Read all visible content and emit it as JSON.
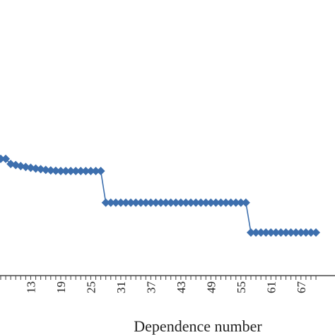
{
  "chart_data": {
    "type": "line",
    "title": "",
    "xlabel": "Dependence number",
    "ylabel": "",
    "grid": false,
    "legend": "none",
    "colors": {
      "series": "#3d6fae",
      "axis": "#444444",
      "text": "#222222"
    },
    "x_tick_labels": [
      "13",
      "19",
      "25",
      "31",
      "37",
      "43",
      "49",
      "55",
      "61",
      "67"
    ],
    "xlim": [
      6,
      70
    ],
    "ylim": [
      0,
      100
    ],
    "series": [
      {
        "x": [
          6,
          7,
          8,
          9,
          10,
          11,
          12,
          13,
          14,
          15,
          16,
          17,
          18,
          19,
          20,
          21,
          22,
          23,
          24,
          25,
          26,
          27,
          28,
          29,
          30,
          31,
          32,
          33,
          34,
          35,
          36,
          37,
          38,
          39,
          40,
          41,
          42,
          43,
          44,
          45,
          46,
          47,
          48,
          49,
          50,
          51,
          52,
          53,
          54,
          55,
          56,
          57,
          58,
          59,
          60,
          61,
          62,
          63,
          64,
          65,
          66,
          67,
          68,
          69,
          70
        ],
        "values": [
          89.3,
          89.3,
          89.3,
          85.4,
          84.6,
          83.8,
          83.1,
          82.5,
          81.9,
          81.4,
          80.9,
          80.5,
          80.2,
          80.0,
          80.0,
          80.0,
          80.0,
          80.0,
          80.0,
          80.0,
          80.0,
          80.0,
          55.8,
          55.8,
          55.8,
          55.8,
          55.8,
          55.8,
          55.8,
          55.8,
          55.8,
          55.8,
          55.8,
          55.8,
          55.8,
          55.8,
          55.8,
          55.8,
          55.8,
          55.8,
          55.8,
          55.8,
          55.8,
          55.8,
          55.8,
          55.8,
          55.8,
          55.8,
          55.8,
          55.8,
          55.8,
          33.0,
          33.0,
          33.0,
          33.0,
          33.0,
          33.0,
          33.0,
          33.0,
          33.0,
          33.0,
          33.0,
          33.0,
          33.0,
          33.0
        ]
      }
    ]
  }
}
